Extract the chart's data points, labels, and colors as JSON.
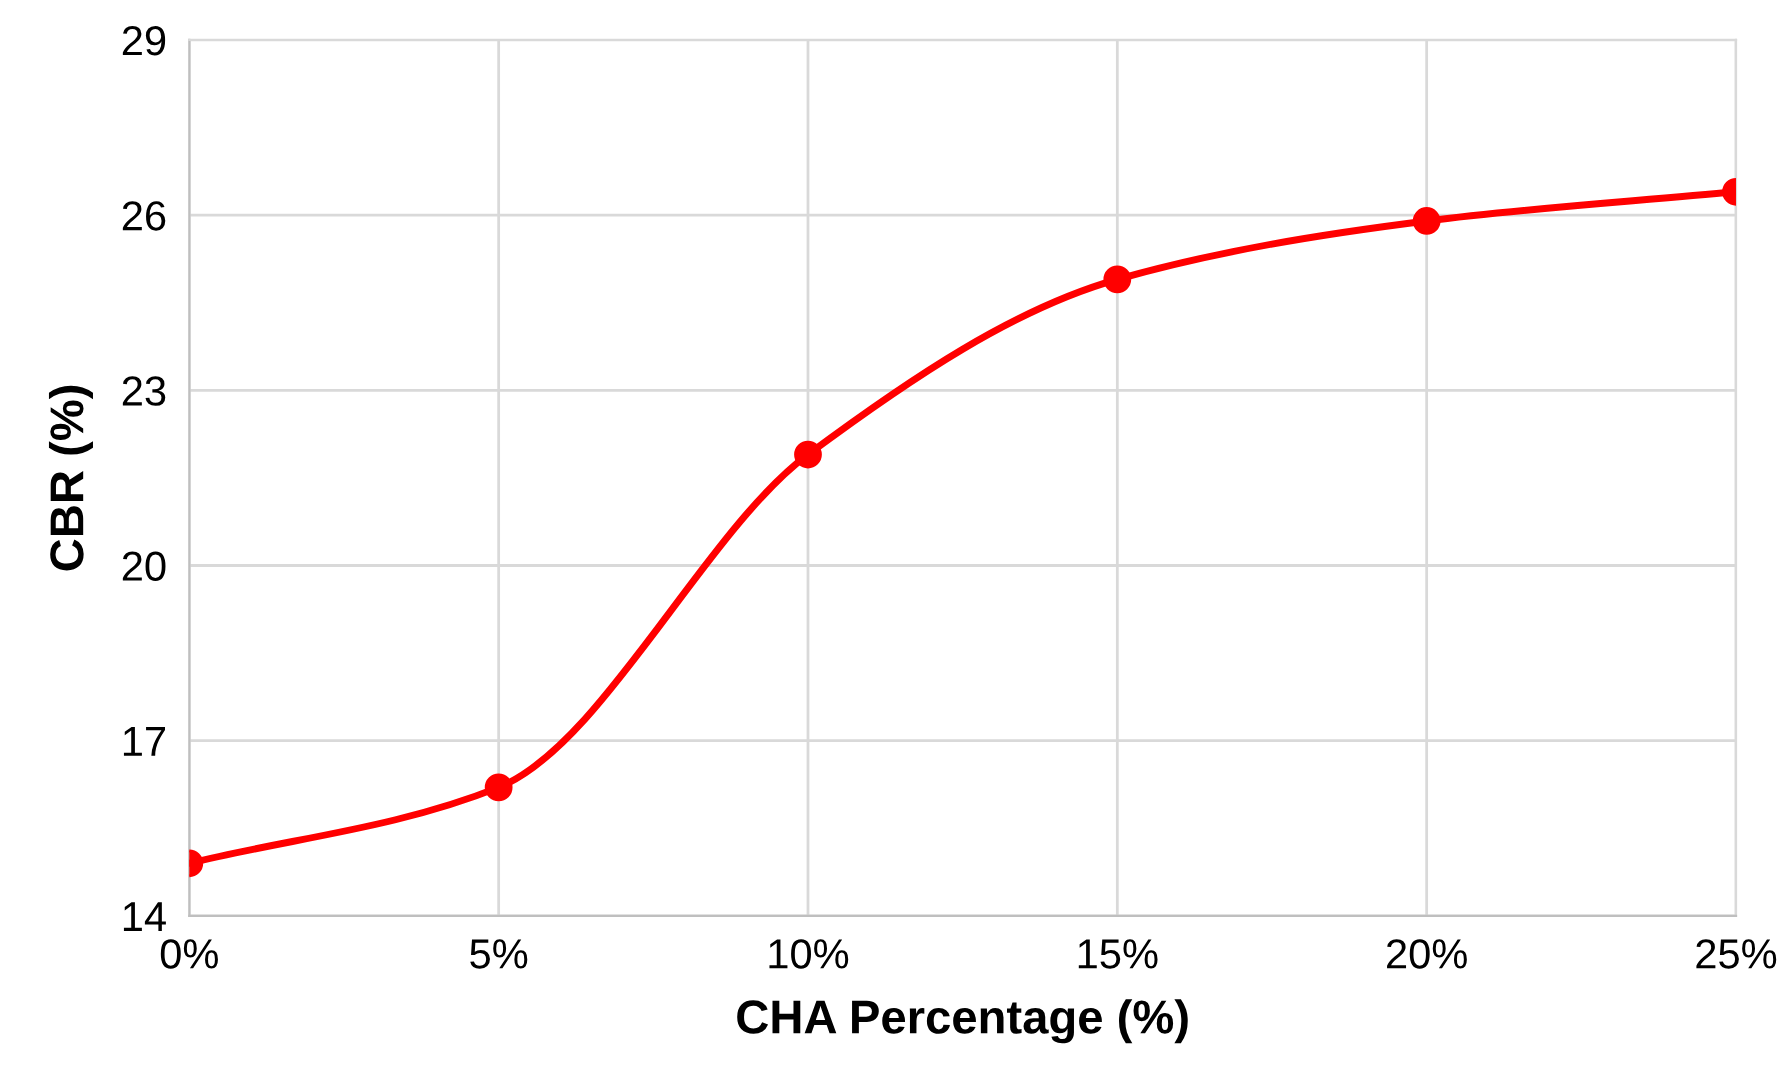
{
  "chart_data": {
    "type": "line",
    "xlabel": "CHA Percentage (%)",
    "ylabel": "CBR (%)",
    "x": [
      0,
      5,
      10,
      15,
      20,
      25
    ],
    "series": [
      {
        "color": "#ff0000",
        "values": [
          14.9,
          16.2,
          21.9,
          24.9,
          25.9,
          26.4
        ]
      }
    ],
    "xlim": [
      0,
      25
    ],
    "xticks": [
      {
        "value": 0,
        "label": "0%"
      },
      {
        "value": 5,
        "label": "5%"
      },
      {
        "value": 10,
        "label": "10%"
      },
      {
        "value": 15,
        "label": "15%"
      },
      {
        "value": 20,
        "label": "20%"
      },
      {
        "value": 25,
        "label": "25%"
      }
    ],
    "ylim": [
      14,
      29
    ],
    "yticks": [
      14,
      17,
      20,
      23,
      26,
      29
    ],
    "grid": true,
    "marker": "circle",
    "line_style": "solid"
  }
}
